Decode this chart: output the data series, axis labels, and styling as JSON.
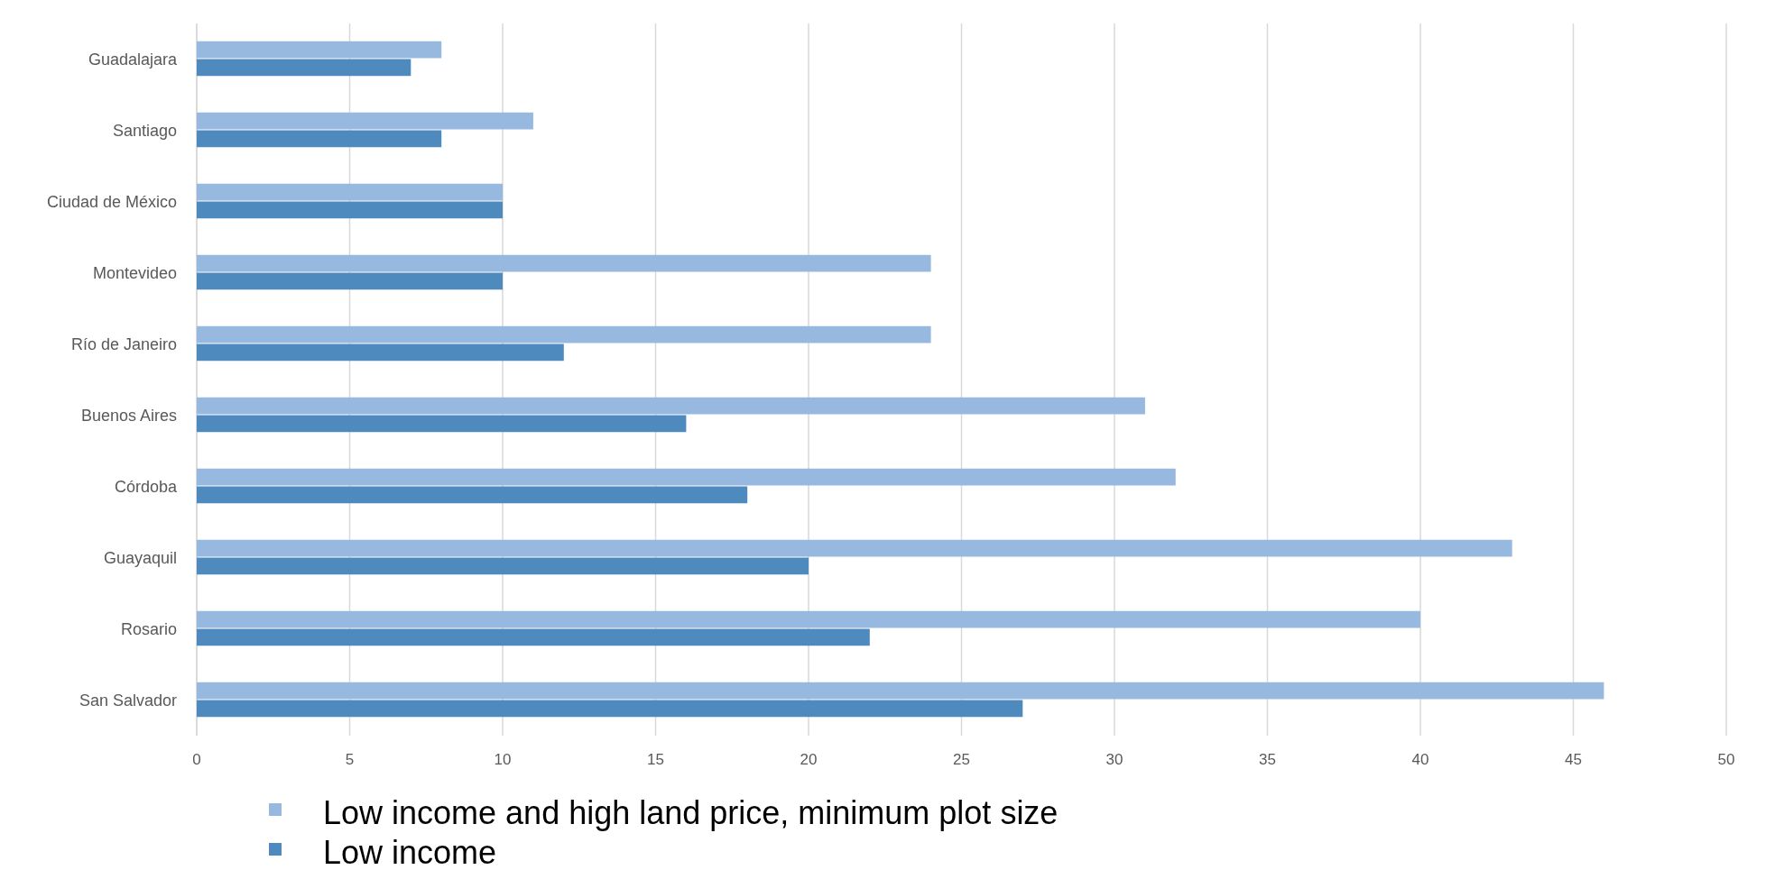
{
  "chart_data": {
    "type": "bar",
    "orientation": "horizontal",
    "categories": [
      "Guadalajara",
      "Santiago",
      "Ciudad de México",
      "Montevideo",
      "Río de Janeiro",
      "Buenos Aires",
      "Córdoba",
      "Guayaquil",
      "Rosario",
      "San Salvador"
    ],
    "series": [
      {
        "name": "Low income and high land price, minimum plot size",
        "color": "#97b9e0",
        "values": [
          8,
          11,
          10,
          24,
          24,
          31,
          32,
          43,
          40,
          46
        ]
      },
      {
        "name": "Low income",
        "color": "#4f8abe",
        "values": [
          7,
          8,
          10,
          10,
          12,
          16,
          18,
          20,
          22,
          27
        ]
      }
    ],
    "xlim": [
      0,
      50
    ],
    "xticks": [
      0,
      5,
      10,
      15,
      20,
      25,
      30,
      35,
      40,
      45,
      50
    ],
    "grid": "x",
    "legend": "bottom"
  }
}
